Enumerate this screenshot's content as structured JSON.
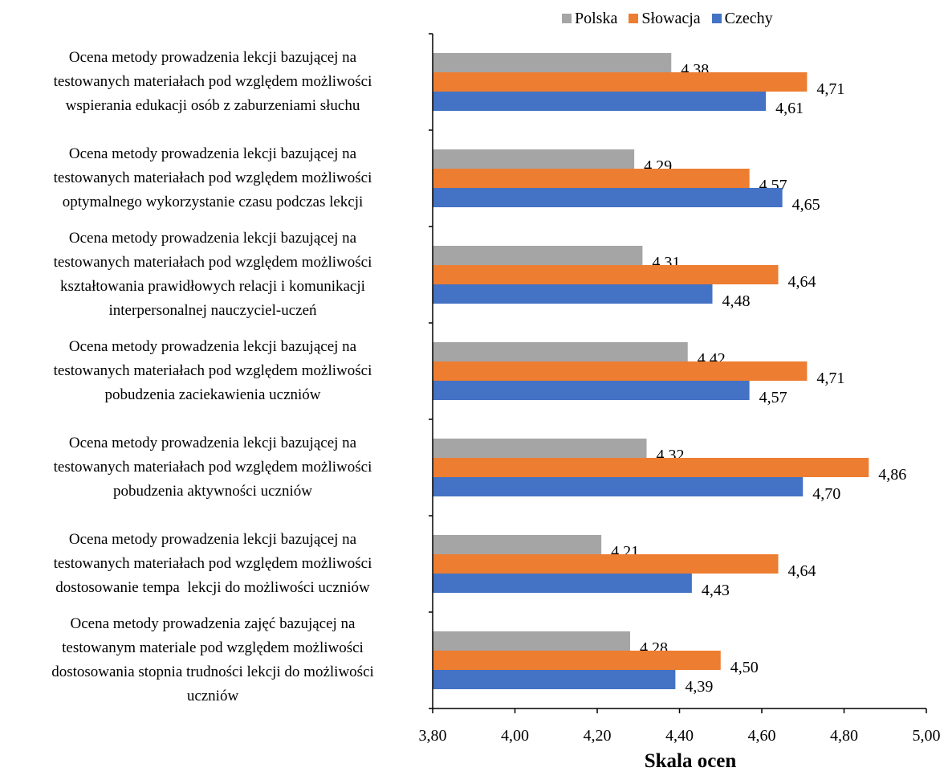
{
  "chart_data": {
    "type": "bar",
    "orientation": "horizontal",
    "title": "",
    "xlabel": "Skala ocen",
    "ylabel": "",
    "xlim": [
      3.8,
      5.0
    ],
    "xticks": [
      "3,80",
      "4,00",
      "4,20",
      "4,40",
      "4,60",
      "4,80",
      "5,00"
    ],
    "grid": false,
    "legend_position": "top",
    "categories": [
      [
        "Ocena metody prowadzenia lekcji bazującej na",
        "testowanych materiałach pod względem możliwości",
        "wspierania edukacji osób z zaburzeniami słuchu"
      ],
      [
        "Ocena metody prowadzenia lekcji bazującej na",
        "testowanych materiałach pod względem możliwości",
        "optymalnego wykorzystanie czasu podczas lekcji"
      ],
      [
        "Ocena metody prowadzenia lekcji bazującej na",
        "testowanych materiałach pod względem możliwości",
        "kształtowania prawidłowych relacji i komunikacji",
        "interpersonalnej nauczyciel-uczeń"
      ],
      [
        "Ocena metody prowadzenia lekcji bazującej na",
        "testowanych materiałach pod względem możliwości",
        "pobudzenia zaciekawienia uczniów"
      ],
      [
        "Ocena metody prowadzenia lekcji bazującej na",
        "testowanych materiałach pod względem możliwości",
        "pobudzenia aktywności uczniów"
      ],
      [
        "Ocena metody prowadzenia lekcji bazującej na",
        "testowanych materiałach pod względem możliwości",
        "dostosowanie tempa  lekcji do możliwości uczniów"
      ],
      [
        "Ocena metody prowadzenia zajęć bazującej na",
        "testowanym materiale pod względem możliwości",
        "dostosowania stopnia trudności lekcji do możliwości",
        "uczniów"
      ]
    ],
    "series": [
      {
        "name": "Polska",
        "color": "#a5a5a5",
        "values": [
          4.38,
          4.29,
          4.31,
          4.42,
          4.32,
          4.21,
          4.28
        ],
        "labels": [
          "4,38",
          "4,29",
          "4,31",
          "4,42",
          "4,32",
          "4,21",
          "4,28"
        ]
      },
      {
        "name": "Słowacja",
        "color": "#ed7d31",
        "values": [
          4.71,
          4.57,
          4.64,
          4.71,
          4.86,
          4.64,
          4.5
        ],
        "labels": [
          "4,71",
          "4,57",
          "4,64",
          "4,71",
          "4,86",
          "4,64",
          "4,50"
        ]
      },
      {
        "name": "Czechy",
        "color": "#4472c4",
        "values": [
          4.61,
          4.65,
          4.48,
          4.57,
          4.7,
          4.43,
          4.39
        ],
        "labels": [
          "4,61",
          "4,65",
          "4,48",
          "4,57",
          "4,70",
          "4,43",
          "4,39"
        ]
      }
    ]
  }
}
